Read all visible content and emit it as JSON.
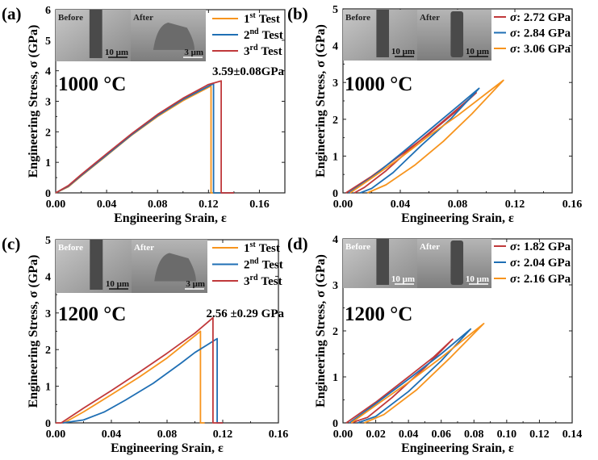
{
  "colors": {
    "orange": "#f7941d",
    "blue": "#1f6fb4",
    "red": "#c0393b"
  },
  "chart_data": [
    {
      "panel": "(a)",
      "type": "line",
      "xlabel": "Engineering Srain, ε",
      "ylabel": "Engineering Stress, σ (GPa)",
      "xlim": [
        0,
        0.18
      ],
      "ylim": [
        0,
        6
      ],
      "xticks": [
        "0.00",
        "0.04",
        "0.08",
        "0.12",
        "0.16"
      ],
      "yticks": [
        "0",
        "1",
        "2",
        "3",
        "4",
        "5",
        "6"
      ],
      "annotation_temp": "1000 °C",
      "annotation_strength": "3.59±0.08GPa",
      "inset": {
        "before": "Before",
        "after": "After",
        "scale_before": "10 μm",
        "scale_after": "3 μm"
      },
      "legend": "top-right",
      "series": [
        {
          "name": "1st Test",
          "color": "#f7941d",
          "points": [
            [
              0,
              0
            ],
            [
              0.01,
              0.2
            ],
            [
              0.02,
              0.55
            ],
            [
              0.04,
              1.22
            ],
            [
              0.06,
              1.9
            ],
            [
              0.08,
              2.5
            ],
            [
              0.1,
              3.02
            ],
            [
              0.122,
              3.5
            ],
            [
              0.122,
              0
            ],
            [
              0.14,
              0
            ]
          ]
        },
        {
          "name": "2nd Test",
          "color": "#1f6fb4",
          "points": [
            [
              0,
              0
            ],
            [
              0.01,
              0.22
            ],
            [
              0.02,
              0.57
            ],
            [
              0.04,
              1.24
            ],
            [
              0.06,
              1.92
            ],
            [
              0.08,
              2.53
            ],
            [
              0.1,
              3.06
            ],
            [
              0.124,
              3.58
            ],
            [
              0.124,
              0
            ],
            [
              0.14,
              0
            ]
          ]
        },
        {
          "name": "3rd Test",
          "color": "#c0393b",
          "points": [
            [
              0,
              0
            ],
            [
              0.01,
              0.24
            ],
            [
              0.02,
              0.6
            ],
            [
              0.04,
              1.28
            ],
            [
              0.06,
              1.95
            ],
            [
              0.08,
              2.57
            ],
            [
              0.1,
              3.1
            ],
            [
              0.12,
              3.55
            ],
            [
              0.13,
              3.67
            ],
            [
              0.13,
              0
            ],
            [
              0.14,
              0
            ]
          ]
        }
      ]
    },
    {
      "panel": "(b)",
      "type": "line",
      "xlabel": "Engineering Srain, ε",
      "ylabel": "Engineering Stress, σ (GPa)",
      "xlim": [
        0,
        0.16
      ],
      "ylim": [
        0,
        5
      ],
      "xticks": [
        "0.00",
        "0.04",
        "0.08",
        "0.12",
        "0.16"
      ],
      "yticks": [
        "0",
        "1",
        "2",
        "3",
        "4",
        "5"
      ],
      "annotation_temp": "1000 °C",
      "annotation_strength": "",
      "inset": {
        "before": "Before",
        "after": "After",
        "scale_before": "10 μm",
        "scale_after": "10 μm"
      },
      "legend": "top-right",
      "series": [
        {
          "name": "σ: 2.72 GPa",
          "color": "#c0393b",
          "points": [
            [
              0.002,
              0
            ],
            [
              0.02,
              0.45
            ],
            [
              0.04,
              1.02
            ],
            [
              0.06,
              1.6
            ],
            [
              0.08,
              2.25
            ],
            [
              0.093,
              2.72
            ],
            [
              0.07,
              1.95
            ],
            [
              0.05,
              1.3
            ],
            [
              0.03,
              0.6
            ],
            [
              0.015,
              0.15
            ],
            [
              0.008,
              0
            ]
          ]
        },
        {
          "name": "σ: 2.84 GPa",
          "color": "#1f6fb4",
          "points": [
            [
              0.004,
              0
            ],
            [
              0.02,
              0.42
            ],
            [
              0.04,
              1.05
            ],
            [
              0.06,
              1.7
            ],
            [
              0.08,
              2.35
            ],
            [
              0.095,
              2.84
            ],
            [
              0.075,
              2.0
            ],
            [
              0.055,
              1.3
            ],
            [
              0.035,
              0.55
            ],
            [
              0.02,
              0.12
            ],
            [
              0.012,
              0
            ]
          ]
        },
        {
          "name": "σ: 3.06 GPa",
          "color": "#f7941d",
          "points": [
            [
              0.005,
              0
            ],
            [
              0.02,
              0.4
            ],
            [
              0.04,
              0.95
            ],
            [
              0.06,
              1.55
            ],
            [
              0.08,
              2.1
            ],
            [
              0.1,
              2.7
            ],
            [
              0.112,
              3.06
            ],
            [
              0.09,
              2.15
            ],
            [
              0.07,
              1.4
            ],
            [
              0.05,
              0.75
            ],
            [
              0.03,
              0.22
            ],
            [
              0.017,
              0
            ]
          ]
        }
      ]
    },
    {
      "panel": "(c)",
      "type": "line",
      "xlabel": "Engineering Srain, ε",
      "ylabel": "Engineering Stress, σ (GPa)",
      "xlim": [
        0,
        0.16
      ],
      "ylim": [
        0,
        5
      ],
      "xticks": [
        "0.00",
        "0.04",
        "0.08",
        "0.12",
        "0.16"
      ],
      "yticks": [
        "0",
        "1",
        "2",
        "3",
        "4",
        "5"
      ],
      "annotation_temp": "1200 °C",
      "annotation_strength": "2.56 ±0.29 GPa",
      "inset": {
        "before": "Before",
        "after": "After",
        "scale_before": "10 μm",
        "scale_after": "3 μm"
      },
      "legend": "top-right",
      "series": [
        {
          "name": "1st Test",
          "color": "#f7941d",
          "points": [
            [
              0.006,
              0
            ],
            [
              0.02,
              0.3
            ],
            [
              0.04,
              0.77
            ],
            [
              0.06,
              1.25
            ],
            [
              0.08,
              1.77
            ],
            [
              0.104,
              2.5
            ],
            [
              0.104,
              0
            ],
            [
              0.107,
              0
            ]
          ]
        },
        {
          "name": "2nd Test",
          "color": "#1f6fb4",
          "points": [
            [
              0.005,
              0
            ],
            [
              0.02,
              0.08
            ],
            [
              0.035,
              0.3
            ],
            [
              0.05,
              0.62
            ],
            [
              0.07,
              1.08
            ],
            [
              0.09,
              1.63
            ],
            [
              0.1,
              1.92
            ],
            [
              0.116,
              2.3
            ],
            [
              0.116,
              0
            ],
            [
              0.12,
              0
            ]
          ]
        },
        {
          "name": "3rd Test",
          "color": "#c0393b",
          "points": [
            [
              0,
              0
            ],
            [
              0.004,
              0
            ],
            [
              0.02,
              0.4
            ],
            [
              0.04,
              0.88
            ],
            [
              0.06,
              1.38
            ],
            [
              0.08,
              1.9
            ],
            [
              0.1,
              2.45
            ],
            [
              0.113,
              2.87
            ],
            [
              0.113,
              0
            ],
            [
              0.12,
              0
            ]
          ]
        }
      ]
    },
    {
      "panel": "(d)",
      "type": "line",
      "xlabel": "Engineering Srain, ε",
      "ylabel": "Engineering Stress, σ (GPa)",
      "xlim": [
        0,
        0.14
      ],
      "ylim": [
        0,
        4
      ],
      "xticks": [
        "0.00",
        "0.02",
        "0.04",
        "0.06",
        "0.08",
        "0.10",
        "0.12",
        "0.14"
      ],
      "yticks": [
        "0",
        "1",
        "2",
        "3",
        "4"
      ],
      "annotation_temp": "1200 °C",
      "annotation_strength": "",
      "inset": {
        "before": "Before",
        "after": "After",
        "scale_before": "10 μm",
        "scale_after": "10 μm"
      },
      "legend": "top-right",
      "series": [
        {
          "name": "σ: 1.82 GPa",
          "color": "#c0393b",
          "points": [
            [
              0.002,
              0
            ],
            [
              0.02,
              0.45
            ],
            [
              0.04,
              1.0
            ],
            [
              0.055,
              1.42
            ],
            [
              0.067,
              1.82
            ],
            [
              0.05,
              1.2
            ],
            [
              0.03,
              0.55
            ],
            [
              0.015,
              0.12
            ],
            [
              0.005,
              0
            ]
          ]
        },
        {
          "name": "σ: 2.04 GPa",
          "color": "#1f6fb4",
          "points": [
            [
              0.004,
              0
            ],
            [
              0.02,
              0.42
            ],
            [
              0.04,
              0.95
            ],
            [
              0.06,
              1.5
            ],
            [
              0.078,
              2.04
            ],
            [
              0.06,
              1.35
            ],
            [
              0.04,
              0.68
            ],
            [
              0.02,
              0.14
            ],
            [
              0.009,
              0
            ]
          ]
        },
        {
          "name": "σ: 2.16 GPa",
          "color": "#f7941d",
          "points": [
            [
              0.005,
              0
            ],
            [
              0.02,
              0.38
            ],
            [
              0.04,
              0.88
            ],
            [
              0.06,
              1.42
            ],
            [
              0.086,
              2.16
            ],
            [
              0.065,
              1.4
            ],
            [
              0.045,
              0.72
            ],
            [
              0.025,
              0.18
            ],
            [
              0.013,
              0
            ]
          ]
        }
      ]
    }
  ]
}
